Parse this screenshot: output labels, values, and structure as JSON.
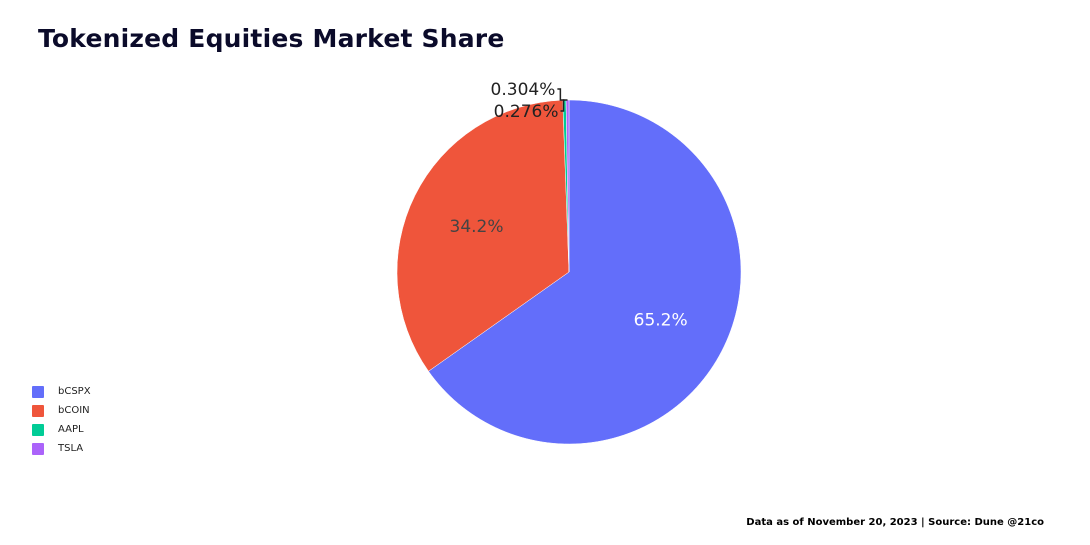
{
  "title": "Tokenized Equities Market Share",
  "footer": "Data as of November 20, 2023 | Source: Dune @21co",
  "chart_data": {
    "type": "pie",
    "title": "Tokenized Equities Market Share",
    "slices": [
      {
        "label": "bCSPX",
        "value": 65.2,
        "display": "65.2%",
        "color": "#636efa",
        "text_color": "#ffffff"
      },
      {
        "label": "bCOIN",
        "value": 34.2,
        "display": "34.2%",
        "color": "#ef553b",
        "text_color": "#444444"
      },
      {
        "label": "AAPL",
        "value": 0.304,
        "display": "0.304%",
        "color": "#00cc96",
        "text_color": "#222222"
      },
      {
        "label": "TSLA",
        "value": 0.276,
        "display": "0.276%",
        "color": "#ab63fa",
        "text_color": "#222222"
      }
    ],
    "legend_position": "left"
  }
}
